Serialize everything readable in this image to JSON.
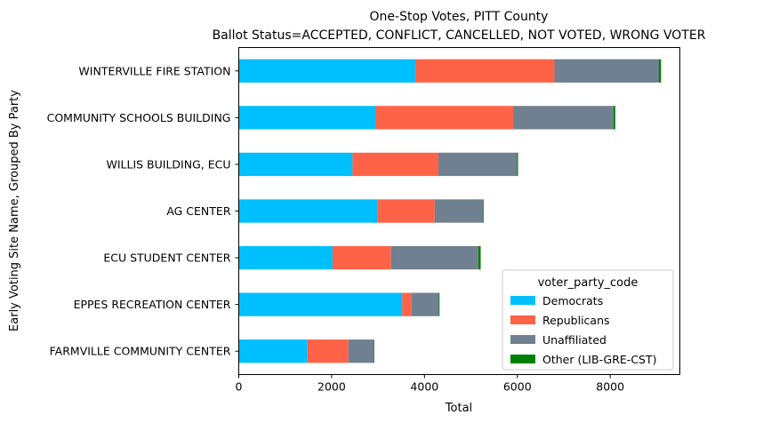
{
  "chart_data": {
    "type": "bar",
    "orientation": "horizontal",
    "stacked": true,
    "title": "One-Stop Votes, PITT County",
    "subtitle": "Ballot Status=ACCEPTED, CONFLICT, CANCELLED, NOT VOTED, WRONG VOTER",
    "xlabel": "Total",
    "ylabel": "Early Voting Site Name, Grouped By Party",
    "xlim": [
      0,
      9500
    ],
    "xticks": [
      0,
      2000,
      4000,
      6000,
      8000
    ],
    "grid": false,
    "categories": [
      "WINTERVILLE FIRE STATION",
      "COMMUNITY SCHOOLS BUILDING",
      "WILLIS BUILDING, ECU",
      "AG CENTER",
      "ECU STUDENT CENTER",
      "EPPES RECREATION CENTER",
      "FARMVILLE COMMUNITY CENTER"
    ],
    "series": [
      {
        "name": "Democrats",
        "color": "#00bfff",
        "values": [
          3800,
          2950,
          2450,
          2980,
          2020,
          3520,
          1480
        ]
      },
      {
        "name": "Republicans",
        "color": "#ff6347",
        "values": [
          3000,
          2960,
          1850,
          1240,
          1260,
          200,
          880
        ]
      },
      {
        "name": "Unaffiliated",
        "color": "#708090",
        "values": [
          2250,
          2160,
          1690,
          1040,
          1880,
          590,
          550
        ]
      },
      {
        "name": "Other (LIB-GRE-CST)",
        "color": "#008000",
        "values": [
          45,
          40,
          25,
          15,
          50,
          15,
          10
        ]
      }
    ],
    "legend": {
      "title": "voter_party_code",
      "position": "lower-right"
    }
  }
}
